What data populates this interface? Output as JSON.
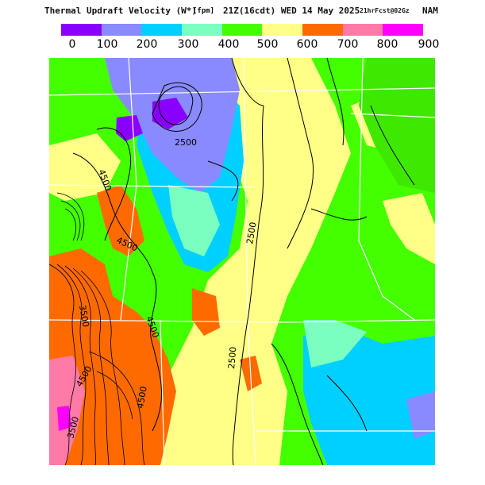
{
  "header": {
    "title": "Thermal Updraft Velocity (W*)",
    "units": "[fpm]",
    "valid_time": "21Z(16cdt) WED 14 May 2025",
    "forecast": "21hrFcst@02Gz",
    "model": "NAM"
  },
  "legend": {
    "ticks": [
      "0",
      "100",
      "200",
      "300",
      "400",
      "500",
      "600",
      "700",
      "800",
      "900"
    ],
    "colors": [
      "#8a00ff",
      "#8a8aff",
      "#00d0ff",
      "#7affc0",
      "#44ff00",
      "#ffff88",
      "#ff6a00",
      "#ff7aa6",
      "#ff00ff"
    ]
  },
  "contour_labels": [
    "4500",
    "2500",
    "4500",
    "2500",
    "4500",
    "2500",
    "4500",
    "3500",
    "3500",
    "4500"
  ]
}
